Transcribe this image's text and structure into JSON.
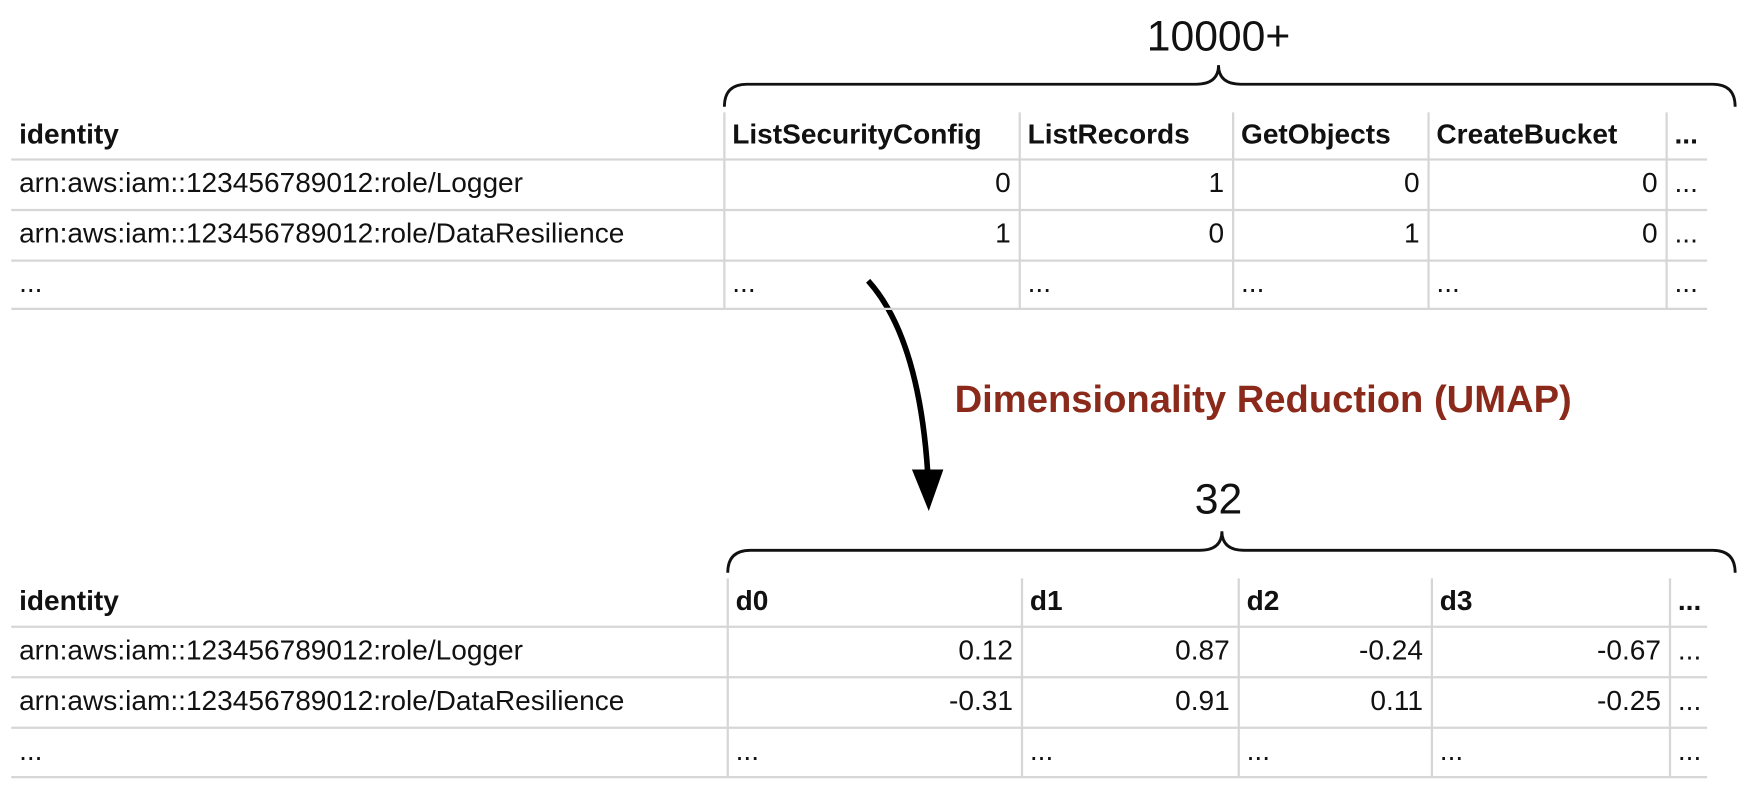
{
  "top": {
    "brace_label": "10000+",
    "table": {
      "header": [
        "identity",
        "ListSecurityConfig",
        "ListRecords",
        "GetObjects",
        "CreateBucket",
        "..."
      ],
      "rows": [
        [
          "arn:aws:iam::123456789012:role/Logger",
          0,
          1,
          0,
          0,
          "..."
        ],
        [
          "arn:aws:iam::123456789012:role/DataResilience",
          1,
          0,
          1,
          0,
          "..."
        ],
        [
          "...",
          "...",
          "...",
          "...",
          "...",
          "..."
        ]
      ]
    }
  },
  "arrow_label": "Dimensionality Reduction (UMAP)",
  "bottom": {
    "brace_label": "32",
    "table": {
      "header": [
        "identity",
        "d0",
        "d1",
        "d2",
        "d3",
        "..."
      ],
      "rows": [
        [
          "arn:aws:iam::123456789012:role/Logger",
          0.12,
          0.87,
          -0.24,
          -0.67,
          "..."
        ],
        [
          "arn:aws:iam::123456789012:role/DataResilience",
          -0.31,
          0.91,
          0.11,
          -0.25,
          "..."
        ],
        [
          "...",
          "...",
          "...",
          "...",
          "...",
          "..."
        ]
      ]
    }
  }
}
